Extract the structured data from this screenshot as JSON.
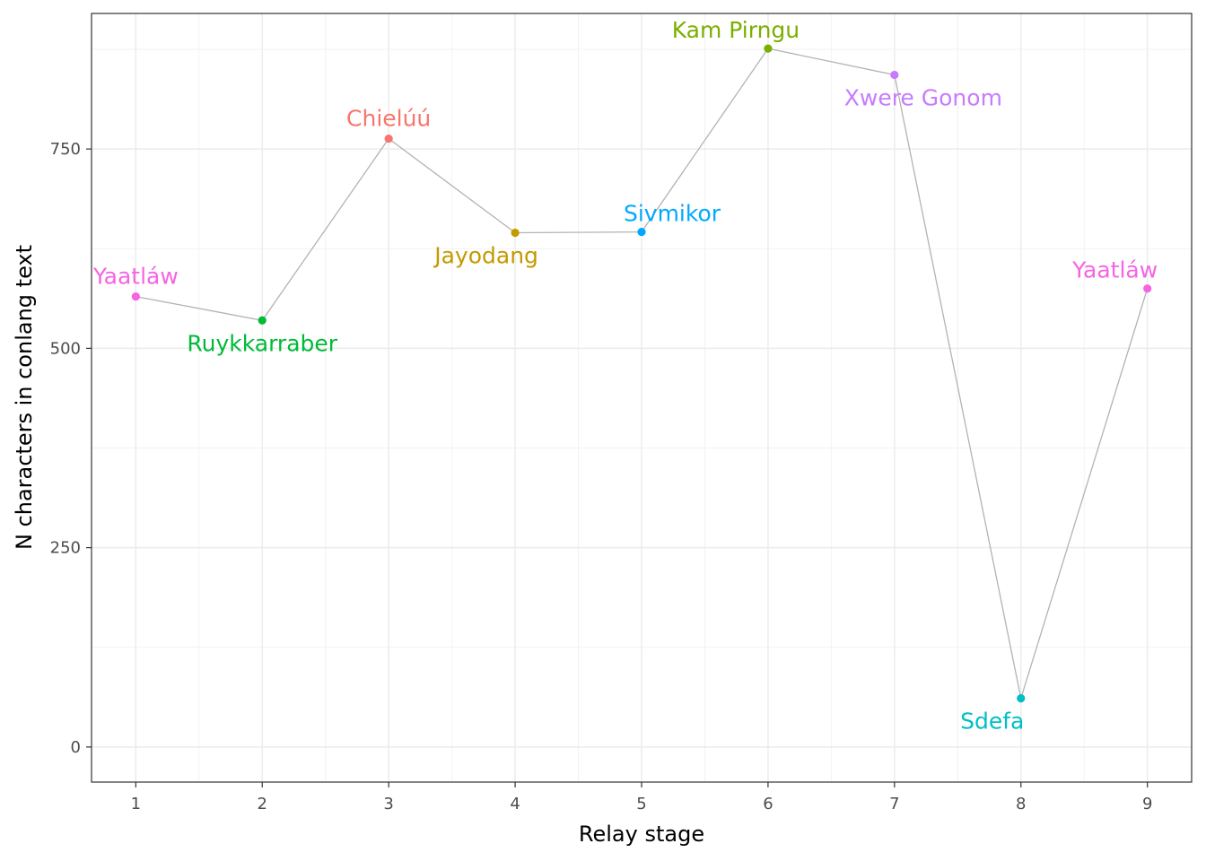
{
  "chart_data": {
    "type": "line",
    "xlabel": "Relay stage",
    "ylabel": "N characters in conlang text",
    "xlim": [
      0.65,
      9.35
    ],
    "ylim": [
      -44,
      920
    ],
    "x_ticks": [
      1,
      2,
      3,
      4,
      5,
      6,
      7,
      8,
      9
    ],
    "y_ticks": [
      0,
      250,
      500,
      750
    ],
    "grid": true,
    "legend": "none",
    "line_color": "#b3b3b3",
    "points": [
      {
        "x": 1,
        "y": 565,
        "label": "Yaatláw",
        "color": "#f564e3",
        "label_pos": "above"
      },
      {
        "x": 2,
        "y": 535,
        "label": "Ruykkarraber",
        "color": "#00ba38",
        "label_pos": "below"
      },
      {
        "x": 3,
        "y": 763,
        "label": "Chielúú",
        "color": "#f8766d",
        "label_pos": "above"
      },
      {
        "x": 4,
        "y": 645,
        "label": "Jayodang",
        "color": "#c49a00",
        "label_pos": "below-left"
      },
      {
        "x": 5,
        "y": 646,
        "label": "Sivmikor",
        "color": "#00a9ff",
        "label_pos": "above-right"
      },
      {
        "x": 6,
        "y": 876,
        "label": "Kam Pirngu",
        "color": "#7cae00",
        "label_pos": "above-left"
      },
      {
        "x": 7,
        "y": 843,
        "label": "Xwere Gonom",
        "color": "#c77cff",
        "label_pos": "below-right"
      },
      {
        "x": 8,
        "y": 61,
        "label": "Sdefa",
        "color": "#00bfc4",
        "label_pos": "below-left"
      },
      {
        "x": 9,
        "y": 575,
        "label": "Yaatláw",
        "color": "#f564e3",
        "label_pos": "above-left"
      }
    ]
  }
}
